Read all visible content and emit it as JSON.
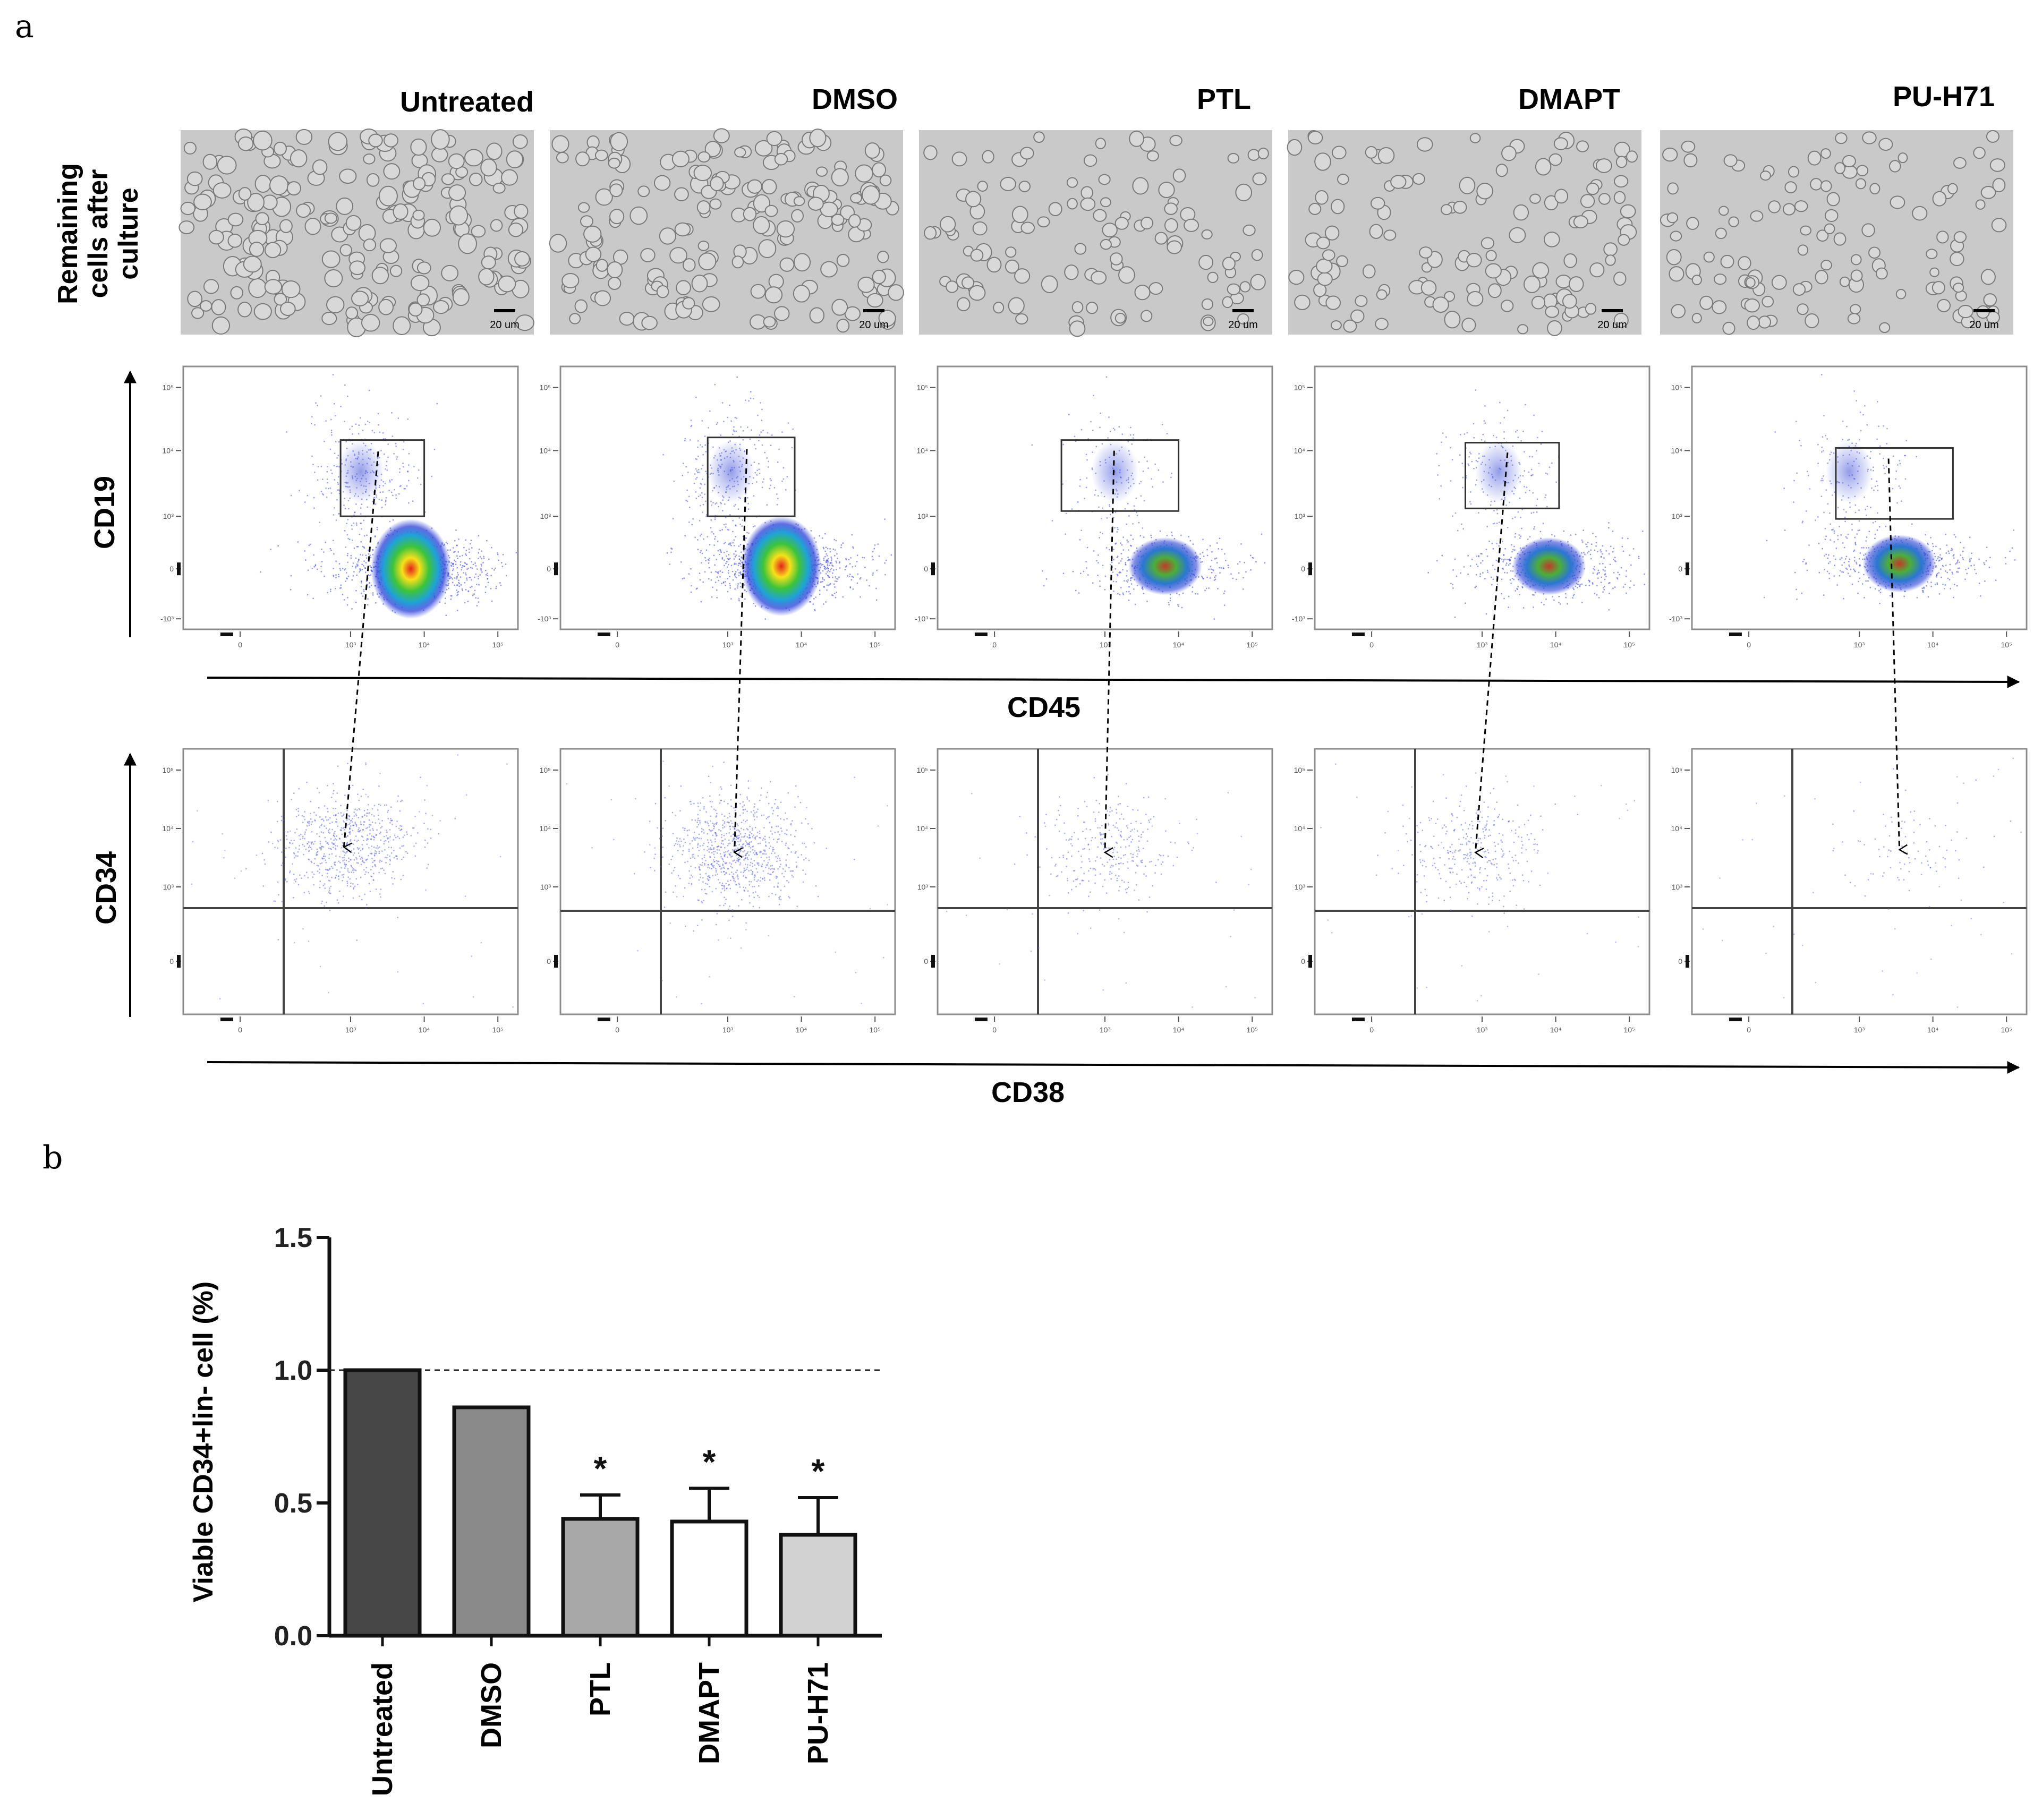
{
  "panel_a": {
    "label": "a",
    "row_label": "Remaining cells after culture",
    "row_label_lines": [
      "Remaining",
      "cells after",
      "culture"
    ],
    "conditions": [
      "Untreated",
      "DMSO",
      "PTL",
      "DMAPT",
      "PU-H71"
    ],
    "scale_bar": "20 um",
    "flow_row1": {
      "y_axis": "CD19",
      "x_axis": "CD45"
    },
    "flow_row2": {
      "y_axis": "CD34",
      "x_axis": "CD38"
    },
    "tick_labels": [
      "0",
      "10³",
      "10⁴",
      "10⁵"
    ],
    "y_tick_labels_row1": [
      "10⁵",
      "10⁴",
      "10³",
      "0",
      "-10³"
    ],
    "y_tick_labels_row2": [
      "10⁵",
      "10⁴",
      "10³",
      "0"
    ]
  },
  "panel_b": {
    "label": "b",
    "chart_data": {
      "type": "bar",
      "categories": [
        "Untreated",
        "DMSO",
        "PTL",
        "DMAPT",
        "PU-H71"
      ],
      "values": [
        1.0,
        0.86,
        0.44,
        0.43,
        0.38
      ],
      "errors": [
        0,
        0,
        0.09,
        0.125,
        0.14
      ],
      "significance": [
        "",
        "",
        "*",
        "*",
        "*"
      ],
      "bar_colors": [
        "#474747",
        "#8a8a8a",
        "#a8a8a8",
        "#ffffff",
        "#d2d2d2"
      ],
      "ylabel": "Viable CD34+lin- cell (%)",
      "xlabel": "",
      "ylim": [
        0,
        1.5
      ],
      "yticks": [
        0.0,
        0.5,
        1.0,
        1.5
      ],
      "ytick_labels": [
        "0.0",
        "0.5",
        "1.0",
        "1.5"
      ],
      "reference_line": 1.0
    }
  }
}
